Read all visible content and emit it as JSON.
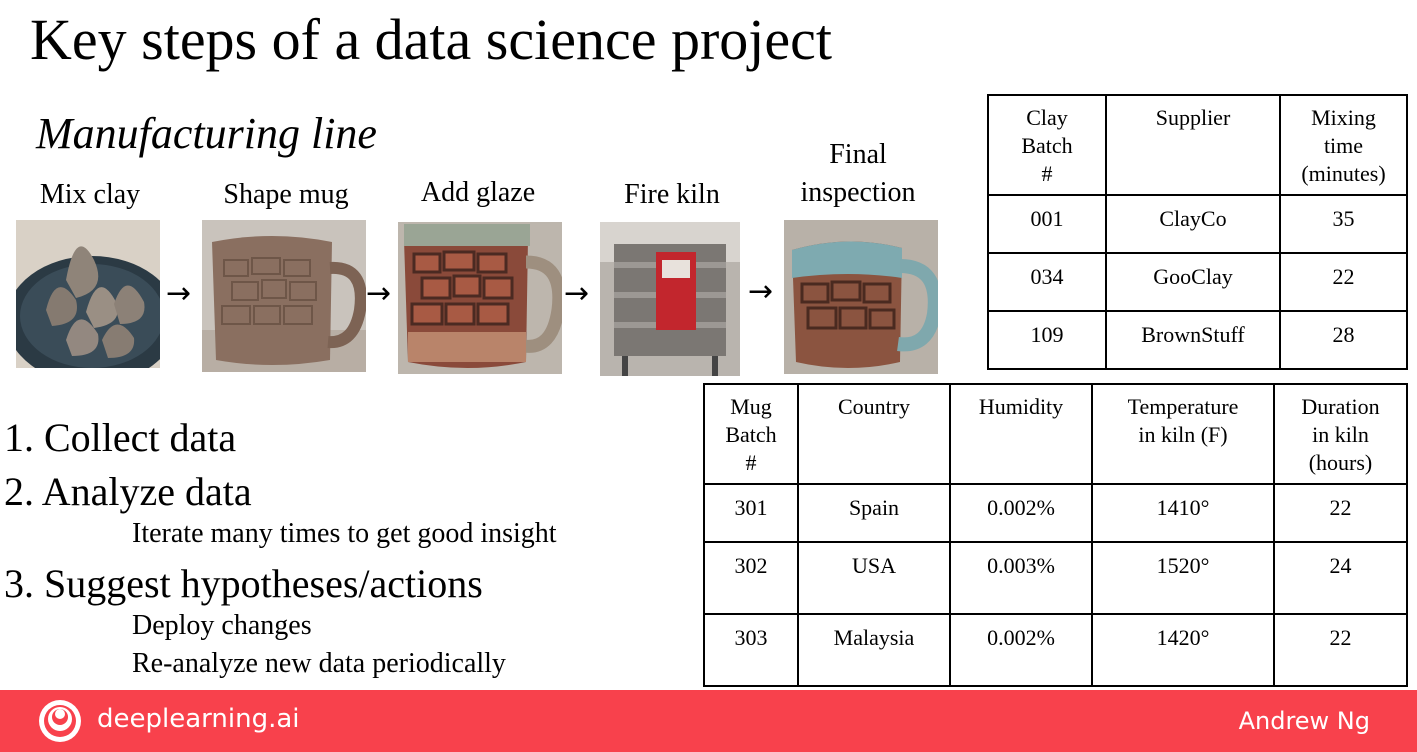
{
  "slide": {
    "title": "Key steps of a data science project",
    "subtitle": "Manufacturing line"
  },
  "steps": [
    {
      "label": "Mix clay",
      "image": "clay-lumps-photo"
    },
    {
      "label": "Shape mug",
      "image": "unglazed-mug-photo"
    },
    {
      "label": "Add glaze",
      "image": "glazed-mug-photo"
    },
    {
      "label": "Fire kiln",
      "image": "kiln-photo"
    },
    {
      "label": "Final inspection",
      "label_line1": "Final",
      "label_line2": "inspection",
      "image": "finished-mug-photo"
    }
  ],
  "arrow_glyph": "→",
  "clay_table": {
    "headers": [
      {
        "l1": "Clay",
        "l2": "Batch",
        "l3": "#"
      },
      {
        "l1": "Supplier",
        "l2": "",
        "l3": ""
      },
      {
        "l1": "Mixing",
        "l2": "time",
        "l3": "(minutes)"
      }
    ],
    "rows": [
      [
        "001",
        "ClayCo",
        "35"
      ],
      [
        "034",
        "GooClay",
        "22"
      ],
      [
        "109",
        "BrownStuff",
        "28"
      ]
    ]
  },
  "mug_table": {
    "headers": [
      {
        "l1": "Mug",
        "l2": "Batch",
        "l3": "#"
      },
      {
        "l1": "Country",
        "l2": "",
        "l3": ""
      },
      {
        "l1": "Humidity",
        "l2": "",
        "l3": ""
      },
      {
        "l1": "Temperature",
        "l2": "in kiln (F)",
        "l3": ""
      },
      {
        "l1": "Duration",
        "l2": "in kiln",
        "l3": "(hours)"
      }
    ],
    "rows": [
      [
        "301",
        "Spain",
        "0.002%",
        "1410°",
        "22"
      ],
      [
        "302",
        "USA",
        "0.003%",
        "1520°",
        "24"
      ],
      [
        "303",
        "Malaysia",
        "0.002%",
        "1420°",
        "22"
      ]
    ]
  },
  "process_list": {
    "item1": "1.  Collect data",
    "item2": "2.  Analyze data",
    "item2_sub": "Iterate many times to get good insight",
    "item3": "3.  Suggest hypotheses/actions",
    "item3_sub1": "Deploy changes",
    "item3_sub2": "Re-analyze new data periodically"
  },
  "footer": {
    "brand": "deeplearning.ai",
    "author": "Andrew Ng",
    "bg_color": "#f8414c"
  }
}
